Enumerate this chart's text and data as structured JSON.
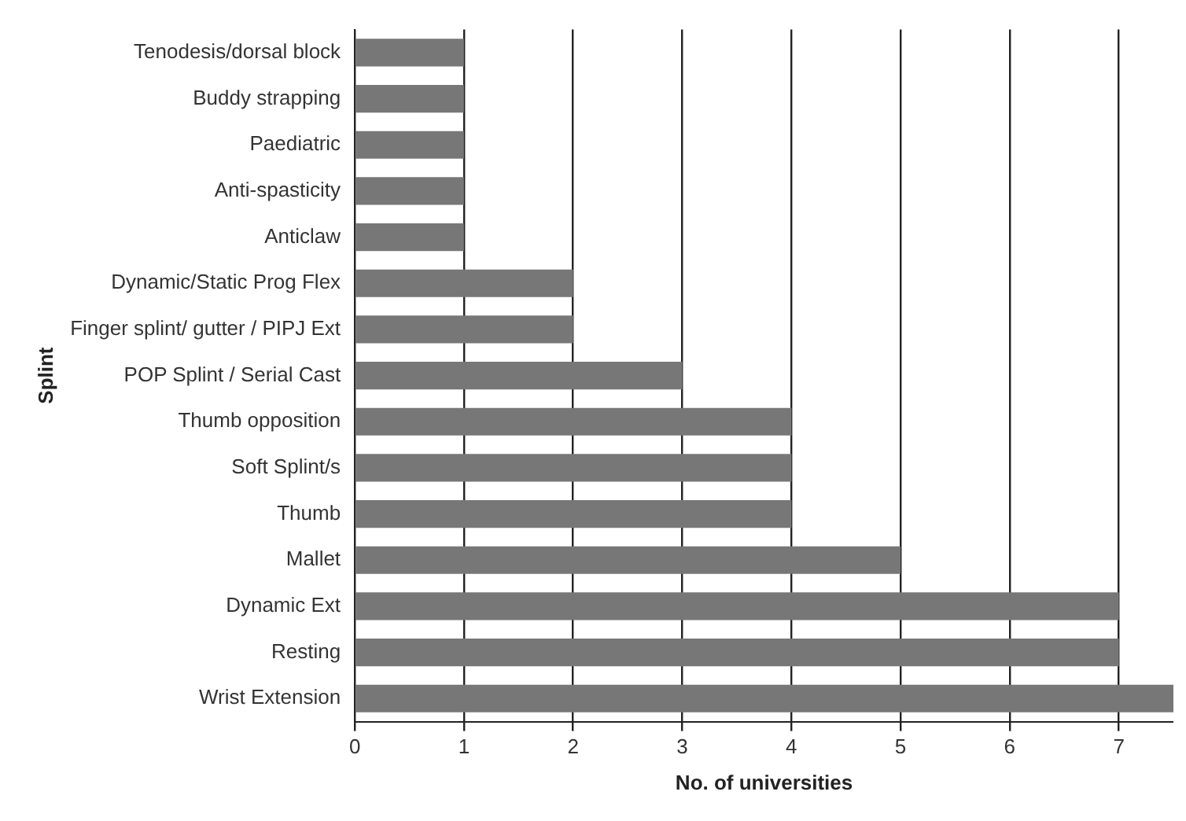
{
  "chart_data": {
    "type": "bar",
    "orientation": "horizontal",
    "xlabel": "No. of universities",
    "ylabel": "Splint",
    "categories": [
      "Tenodesis/dorsal block",
      "Buddy strapping",
      "Paediatric",
      "Anti-spasticity",
      "Anticlaw",
      "Dynamic/Static Prog Flex",
      "Finger splint/ gutter / PIPJ Ext",
      "POP Splint / Serial Cast",
      "Thumb opposition",
      "Soft Splint/s",
      "Thumb",
      "Mallet",
      "Dynamic Ext",
      "Resting",
      "Wrist Extension"
    ],
    "values": [
      1,
      1,
      1,
      1,
      1,
      2,
      2,
      3,
      4,
      4,
      4,
      5,
      7,
      7,
      7.5
    ],
    "color": "#777777",
    "xlim": [
      0,
      7.5
    ],
    "xticks": [
      0,
      1,
      2,
      3,
      4,
      5,
      6,
      7
    ],
    "grid": "x",
    "legend": false
  }
}
